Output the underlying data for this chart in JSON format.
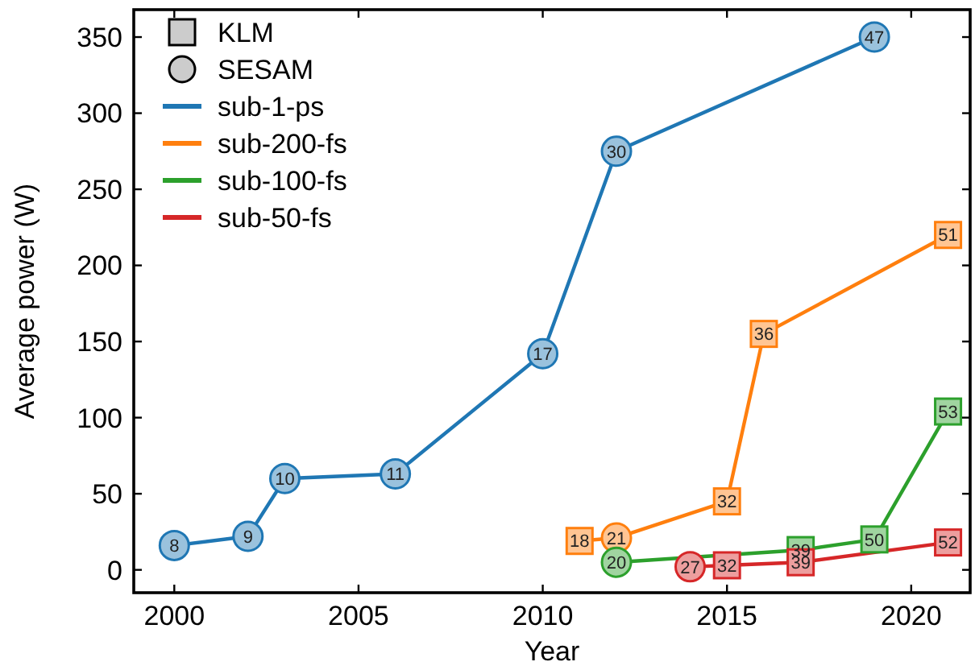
{
  "chart_data": {
    "type": "line",
    "xlabel": "Year",
    "ylabel": "Average power (W)",
    "xlim": [
      1998.9,
      2021.6
    ],
    "xticks": [
      2000,
      2005,
      2010,
      2015,
      2020
    ],
    "ylim": [
      -15,
      368
    ],
    "yticks": [
      0,
      50,
      100,
      150,
      200,
      250,
      300,
      350
    ],
    "grid": false,
    "legend": "top left",
    "series": [
      {
        "name": "sub-1-ps",
        "color": "#1f77b4",
        "marker": "none",
        "x": [
          2000,
          2002,
          2003,
          2006,
          2010,
          2012,
          2019
        ],
        "values": [
          16,
          22,
          60,
          63,
          142,
          275,
          350
        ]
      },
      {
        "name": "sub-200-fs",
        "color": "#ff7f0e",
        "marker": "none",
        "x": [
          2011,
          2012,
          2015,
          2016,
          2021
        ],
        "values": [
          19,
          21,
          45,
          155,
          220
        ]
      },
      {
        "name": "sub-100-fs",
        "color": "#2ca02c",
        "marker": "none",
        "x": [
          2012,
          2017,
          2019,
          2021
        ],
        "values": [
          5,
          13,
          20,
          104
        ]
      },
      {
        "name": "sub-50-fs",
        "color": "#d62728",
        "marker": "none",
        "x": [
          2014,
          2015,
          2017,
          2021
        ],
        "values": [
          2,
          3,
          5,
          18
        ]
      },
      {
        "type": "scatter",
        "color": "#ff7f0e",
        "marker": "square",
        "x": [
          2011,
          2015,
          2016,
          2021
        ],
        "values": [
          19,
          45,
          155,
          220
        ]
      },
      {
        "type": "scatter",
        "color": "#2ca02c",
        "marker": "square",
        "x": [
          2017,
          2019,
          2021
        ],
        "values": [
          13,
          20,
          104
        ]
      },
      {
        "type": "scatter",
        "color": "#d62728",
        "marker": "square",
        "x": [
          2015,
          2017,
          2021
        ],
        "values": [
          3,
          5,
          18
        ]
      },
      {
        "type": "scatter",
        "color": "#1f77b4",
        "marker": "circle",
        "x": [
          2000,
          2002,
          2003,
          2006,
          2010,
          2012,
          2019
        ],
        "values": [
          16,
          22,
          60,
          63,
          142,
          275,
          350
        ]
      },
      {
        "type": "scatter",
        "color": "#ff7f0e",
        "marker": "circle",
        "x": [
          2012
        ],
        "values": [
          21
        ]
      },
      {
        "type": "scatter",
        "color": "#2ca02c",
        "marker": "circle",
        "x": [
          2012
        ],
        "values": [
          5
        ]
      },
      {
        "type": "scatter",
        "color": "#d62728",
        "marker": "circle",
        "x": [
          2014
        ],
        "values": [
          2
        ]
      }
    ],
    "annotations": [
      "KLM",
      "SESAM",
      {
        "text": "8",
        "x": 2000,
        "y": 16
      },
      {
        "text": "9",
        "x": 2002,
        "y": 22
      },
      {
        "text": "10",
        "x": 2003,
        "y": 60
      },
      {
        "text": "11",
        "x": 2006,
        "y": 63
      },
      {
        "text": "17",
        "x": 2010,
        "y": 142
      },
      {
        "text": "30",
        "x": 2012,
        "y": 275
      },
      {
        "text": "47",
        "x": 2019,
        "y": 350
      },
      {
        "text": "18",
        "x": 2011,
        "y": 19
      },
      {
        "text": "21",
        "x": 2012,
        "y": 21
      },
      {
        "text": "32",
        "x": 2015,
        "y": 45
      },
      {
        "text": "36",
        "x": 2016,
        "y": 155
      },
      {
        "text": "51",
        "x": 2021,
        "y": 220
      },
      {
        "text": "20",
        "x": 2012,
        "y": 5
      },
      {
        "text": "39",
        "x": 2017,
        "y": 13
      },
      {
        "text": "50",
        "x": 2019,
        "y": 20
      },
      {
        "text": "53",
        "x": 2021,
        "y": 104
      },
      {
        "text": "27",
        "x": 2014,
        "y": 2
      },
      {
        "text": "32",
        "x": 2015,
        "y": 3
      },
      {
        "text": "39",
        "x": 2017,
        "y": 5
      },
      {
        "text": "52",
        "x": 2021,
        "y": 18
      }
    ]
  }
}
